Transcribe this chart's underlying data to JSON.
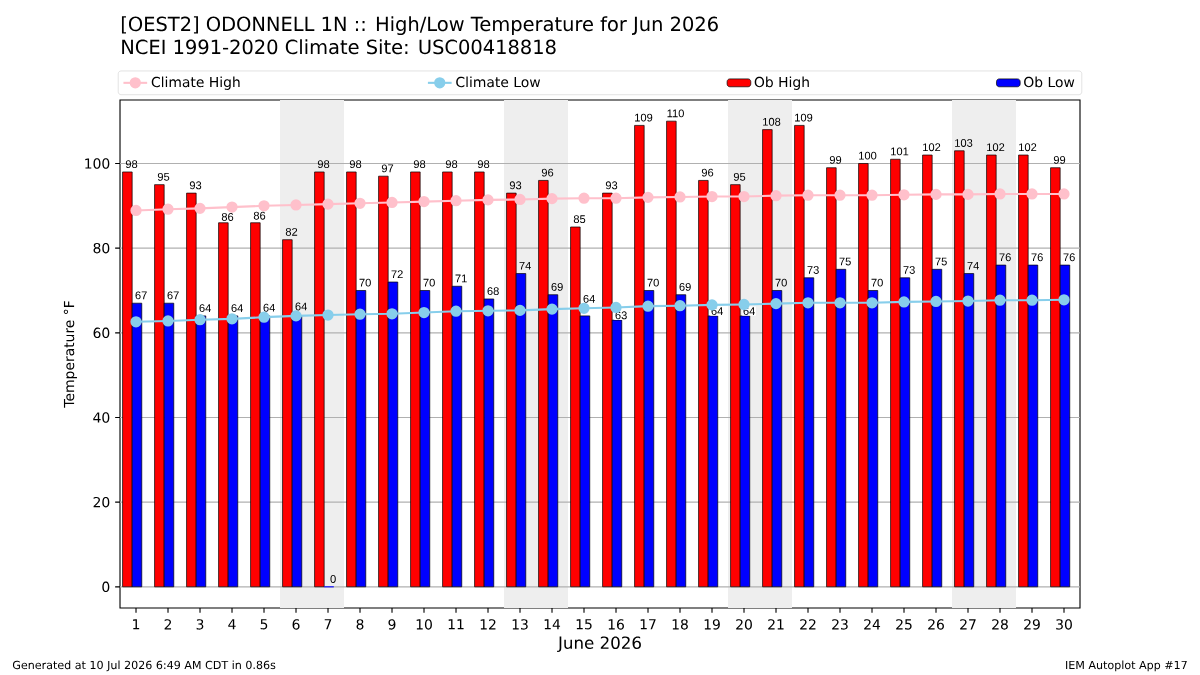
{
  "chart_data": {
    "type": "bar",
    "title": "[OEST2] ODONNELL 1N :: High/Low Temperature for Jun 2026",
    "subtitle": "NCEI 1991-2020 Climate Site: USC00418818",
    "xlabel": "June 2026",
    "ylabel": "Temperature °F",
    "x": [
      1,
      2,
      3,
      4,
      5,
      6,
      7,
      8,
      9,
      10,
      11,
      12,
      13,
      14,
      15,
      16,
      17,
      18,
      19,
      20,
      21,
      22,
      23,
      24,
      25,
      26,
      27,
      28,
      29,
      30
    ],
    "series": [
      {
        "name": "Climate High",
        "type": "line",
        "marker": "circle",
        "color": "#ffc0cb",
        "values": [
          88.9,
          89.2,
          89.4,
          89.7,
          90.0,
          90.2,
          90.4,
          90.6,
          90.8,
          91.0,
          91.2,
          91.4,
          91.5,
          91.7,
          91.8,
          91.8,
          92.0,
          92.1,
          92.2,
          92.2,
          92.4,
          92.5,
          92.5,
          92.5,
          92.6,
          92.7,
          92.7,
          92.8,
          92.8,
          92.8
        ]
      },
      {
        "name": "Climate Low",
        "type": "line",
        "marker": "circle",
        "color": "#87ceeb",
        "values": [
          62.6,
          62.8,
          63.1,
          63.3,
          63.7,
          64.0,
          64.2,
          64.4,
          64.5,
          64.8,
          65.1,
          65.2,
          65.3,
          65.6,
          65.8,
          66.0,
          66.3,
          66.4,
          66.6,
          66.7,
          66.9,
          67.1,
          67.1,
          67.1,
          67.3,
          67.4,
          67.5,
          67.7,
          67.7,
          67.8
        ]
      },
      {
        "name": "Ob High",
        "type": "bar",
        "color": "#ff0000",
        "data_labels": true,
        "values": [
          98,
          95,
          93,
          86,
          86,
          82,
          98,
          98,
          97,
          98,
          98,
          98,
          93,
          96,
          85,
          93,
          109,
          110,
          96,
          95,
          108,
          109,
          99,
          100,
          101,
          102,
          103,
          102,
          102,
          99
        ]
      },
      {
        "name": "Ob Low",
        "type": "bar",
        "color": "#0000ff",
        "data_labels": true,
        "values": [
          67,
          67,
          64,
          64,
          64,
          64,
          0,
          70,
          72,
          70,
          71,
          68,
          74,
          69,
          64,
          63,
          70,
          69,
          64,
          64,
          70,
          73,
          75,
          70,
          73,
          75,
          74,
          76,
          76,
          76
        ]
      }
    ],
    "xlim": [
      0.5,
      30.5
    ],
    "xticks": [
      1,
      2,
      3,
      4,
      5,
      6,
      7,
      8,
      9,
      10,
      11,
      12,
      13,
      14,
      15,
      16,
      17,
      18,
      19,
      20,
      21,
      22,
      23,
      24,
      25,
      26,
      27,
      28,
      29,
      30
    ],
    "ylim": [
      -5,
      115
    ],
    "yticks": [
      0,
      20,
      40,
      60,
      80,
      100
    ],
    "grid": "y",
    "legend": "top",
    "bands": [
      {
        "axis": "x",
        "from": 5.5,
        "to": 7.5,
        "color": "#eeeeee"
      },
      {
        "axis": "x",
        "from": 12.5,
        "to": 14.5,
        "color": "#eeeeee"
      },
      {
        "axis": "x",
        "from": 19.5,
        "to": 21.5,
        "color": "#eeeeee"
      },
      {
        "axis": "x",
        "from": 26.5,
        "to": 28.5,
        "color": "#eeeeee"
      }
    ],
    "annotations": [
      "Generated at 10 Jul 2026 6:49 AM CDT in 0.86s",
      "IEM Autoplot App #17"
    ]
  }
}
